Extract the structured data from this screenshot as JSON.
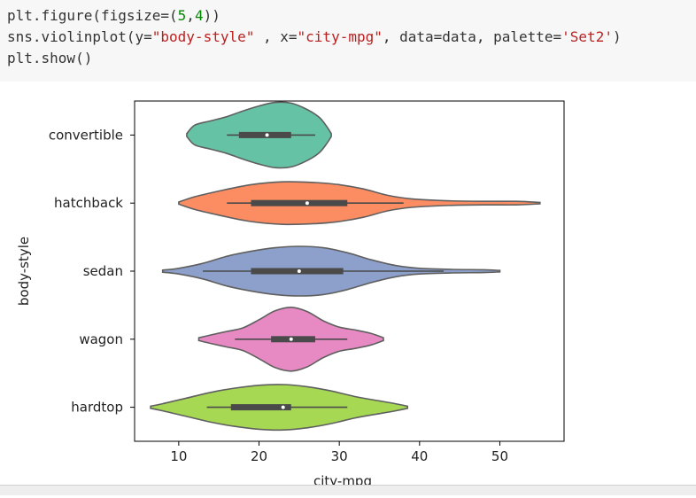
{
  "code": {
    "line1": [
      {
        "t": "plt.figure(figsize=(",
        "k": "plain"
      },
      {
        "t": "5",
        "k": "num"
      },
      {
        "t": ",",
        "k": "plain"
      },
      {
        "t": "4",
        "k": "num"
      },
      {
        "t": "))",
        "k": "plain"
      }
    ],
    "line2": [
      {
        "t": "sns.violinplot(y=",
        "k": "plain"
      },
      {
        "t": "\"body-style\"",
        "k": "str"
      },
      {
        "t": " , x=",
        "k": "plain"
      },
      {
        "t": "\"city-mpg\"",
        "k": "str"
      },
      {
        "t": ", data=data, palette=",
        "k": "plain"
      },
      {
        "t": "'Set2'",
        "k": "str"
      },
      {
        "t": ")",
        "k": "plain"
      }
    ],
    "line3": [
      {
        "t": "plt.show()",
        "k": "plain"
      }
    ]
  },
  "colors": {
    "code_background": "#f7f7f7",
    "number_token": "#008800",
    "string_token": "#ba2121",
    "violin_edge": "#5f5f5f"
  },
  "chart_data": {
    "type": "violin",
    "orientation": "horizontal",
    "xlabel": "city-mpg",
    "ylabel": "body-style",
    "xlim": [
      4.5,
      58
    ],
    "xticks": [
      10,
      20,
      30,
      40,
      50
    ],
    "categories": [
      "convertible",
      "hatchback",
      "sedan",
      "wagon",
      "hardtop"
    ],
    "palette": [
      "#66c2a5",
      "#fc8d62",
      "#8da0cb",
      "#e78ac3",
      "#a6d854"
    ],
    "grid": false,
    "violins": [
      {
        "category": "convertible",
        "kde_range": [
          11,
          29
        ],
        "whisker": [
          16,
          27
        ],
        "q1": 17.5,
        "q3": 24,
        "median": 21,
        "density": [
          [
            11,
            0.04
          ],
          [
            12,
            0.28
          ],
          [
            14,
            0.4
          ],
          [
            16,
            0.52
          ],
          [
            18,
            0.68
          ],
          [
            20,
            0.82
          ],
          [
            22,
            0.92
          ],
          [
            24,
            0.9
          ],
          [
            26,
            0.72
          ],
          [
            27.5,
            0.5
          ],
          [
            28.5,
            0.22
          ],
          [
            29,
            0.04
          ]
        ]
      },
      {
        "category": "hatchback",
        "kde_range": [
          10,
          55
        ],
        "whisker": [
          16,
          38
        ],
        "q1": 19,
        "q3": 31,
        "median": 26,
        "density": [
          [
            10,
            0.03
          ],
          [
            12,
            0.18
          ],
          [
            15,
            0.34
          ],
          [
            19,
            0.52
          ],
          [
            23,
            0.6
          ],
          [
            27,
            0.58
          ],
          [
            30,
            0.52
          ],
          [
            33,
            0.4
          ],
          [
            36,
            0.22
          ],
          [
            39,
            0.12
          ],
          [
            43,
            0.07
          ],
          [
            48,
            0.05
          ],
          [
            52,
            0.05
          ],
          [
            55,
            0.02
          ]
        ]
      },
      {
        "category": "sedan",
        "kde_range": [
          8,
          50
        ],
        "whisker": [
          13,
          43
        ],
        "q1": 19,
        "q3": 30.5,
        "median": 25,
        "density": [
          [
            8,
            0.03
          ],
          [
            10,
            0.08
          ],
          [
            13,
            0.22
          ],
          [
            16,
            0.42
          ],
          [
            19,
            0.56
          ],
          [
            22,
            0.66
          ],
          [
            25,
            0.7
          ],
          [
            28,
            0.66
          ],
          [
            31,
            0.52
          ],
          [
            34,
            0.32
          ],
          [
            37,
            0.16
          ],
          [
            40,
            0.08
          ],
          [
            44,
            0.05
          ],
          [
            48,
            0.04
          ],
          [
            50,
            0.02
          ]
        ]
      },
      {
        "category": "wagon",
        "kde_range": [
          12.5,
          35.5
        ],
        "whisker": [
          17,
          31
        ],
        "q1": 21.5,
        "q3": 27,
        "median": 24,
        "density": [
          [
            12.5,
            0.04
          ],
          [
            14,
            0.12
          ],
          [
            16,
            0.22
          ],
          [
            18,
            0.32
          ],
          [
            20,
            0.55
          ],
          [
            22,
            0.8
          ],
          [
            24,
            0.9
          ],
          [
            26,
            0.78
          ],
          [
            28,
            0.52
          ],
          [
            30,
            0.34
          ],
          [
            32,
            0.26
          ],
          [
            34,
            0.16
          ],
          [
            35.5,
            0.04
          ]
        ]
      },
      {
        "category": "hardtop",
        "kde_range": [
          6.5,
          38.5
        ],
        "whisker": [
          13.5,
          31
        ],
        "q1": 16.5,
        "q3": 24,
        "median": 23,
        "density": [
          [
            6.5,
            0.03
          ],
          [
            8,
            0.1
          ],
          [
            11,
            0.26
          ],
          [
            14,
            0.42
          ],
          [
            17,
            0.54
          ],
          [
            20,
            0.62
          ],
          [
            23,
            0.64
          ],
          [
            26,
            0.58
          ],
          [
            29,
            0.46
          ],
          [
            32,
            0.3
          ],
          [
            35,
            0.18
          ],
          [
            37,
            0.1
          ],
          [
            38.5,
            0.03
          ]
        ]
      }
    ]
  }
}
